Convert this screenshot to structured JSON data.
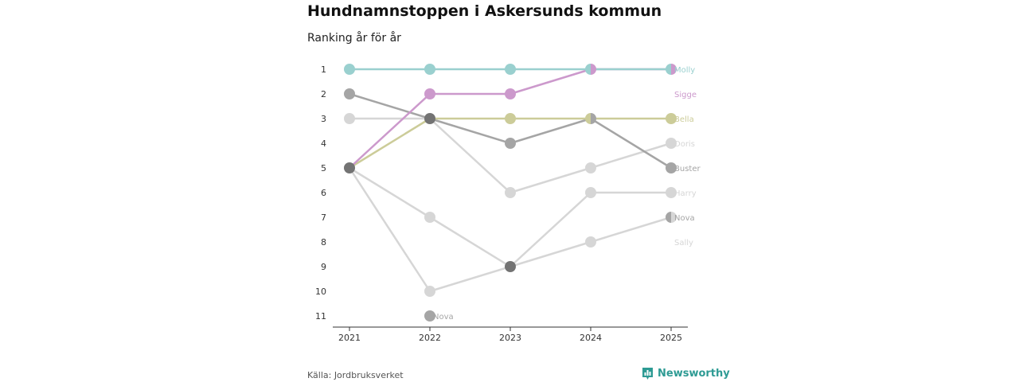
{
  "header": {
    "title": "Hundnamnstoppen i Askersunds kommun",
    "subtitle": "Ranking år för år"
  },
  "footer": {
    "source": "Källa: Jordbruksverket",
    "brand": "Newsworthy"
  },
  "colors": {
    "Molly": "#9ad0cf",
    "Sigge": "#cc99cc",
    "Bella": "#cccc99",
    "Buster": "#a5a5a5",
    "Doris": "#d6d6d6",
    "Harry": "#d6d6d6",
    "Nova": "#a5a5a5",
    "Sally": "#d6d6d6",
    "overlap": "#737373",
    "brand": "#2e9b94"
  },
  "chart_data": {
    "type": "bump",
    "title": "Hundnamnstoppen i Askersunds kommun",
    "subtitle": "Ranking år för år",
    "x": [
      "2021",
      "2022",
      "2023",
      "2024",
      "2025"
    ],
    "y_ticks": [
      "1",
      "2",
      "3",
      "4",
      "5",
      "6",
      "7",
      "8",
      "9",
      "10",
      "11"
    ],
    "ylim": [
      1,
      11
    ],
    "y_direction": "rank, 1 at top",
    "series": [
      {
        "name": "Doris",
        "ranks": [
          5,
          10,
          9,
          8,
          7
        ],
        "end_label": "Doris",
        "end_rank": 4
      },
      {
        "name": "Harry",
        "ranks": [
          5,
          7,
          9,
          6,
          6
        ],
        "end_label": "Harry"
      },
      {
        "name": "Sally",
        "ranks": [
          3,
          3,
          6,
          5,
          4
        ],
        "end_label": "Sally",
        "end_rank": 8
      },
      {
        "name": "Nova",
        "ranks": [
          null,
          11,
          null,
          null,
          7
        ],
        "end_label": "Nova",
        "extra_label_at": "2022"
      },
      {
        "name": "Buster",
        "ranks": [
          2,
          3,
          4,
          3,
          5
        ],
        "end_label": "Buster"
      },
      {
        "name": "Bella",
        "ranks": [
          5,
          3,
          3,
          3,
          3
        ],
        "end_label": "Bella"
      },
      {
        "name": "Sigge",
        "ranks": [
          5,
          2,
          2,
          1,
          1
        ],
        "end_label": "Sigge",
        "end_rank": 2
      },
      {
        "name": "Molly",
        "ranks": [
          1,
          1,
          1,
          1,
          1
        ],
        "end_label": "Molly"
      }
    ]
  }
}
